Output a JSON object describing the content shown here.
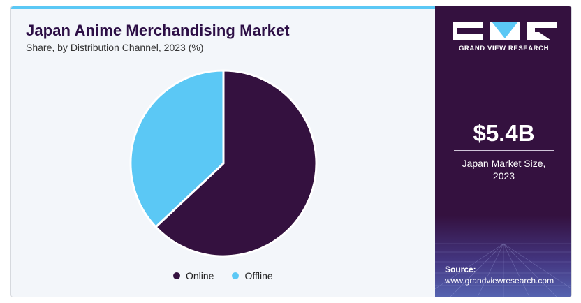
{
  "header": {
    "title": "Japan Anime Merchandising Market",
    "subtitle": "Share, by Distribution Channel, 2023 (%)"
  },
  "chart_data": {
    "type": "pie",
    "title": "Japan Anime Merchandising Market",
    "subtitle": "Share, by Distribution Channel, 2023 (%)",
    "categories": [
      "Online",
      "Offline"
    ],
    "values": [
      63,
      37
    ],
    "colors": [
      "#34113f",
      "#5bc8f5"
    ],
    "legend_position": "bottom"
  },
  "sidebar": {
    "brand": "GRAND VIEW RESEARCH",
    "market_value": "$5.4B",
    "market_label_line1": "Japan Market Size,",
    "market_label_line2": "2023",
    "source_label": "Source:",
    "source_url": "www.grandviewresearch.com"
  },
  "colors": {
    "accent_bar": "#5bc8f5",
    "panel": "#34113f",
    "title": "#2d0f46"
  }
}
